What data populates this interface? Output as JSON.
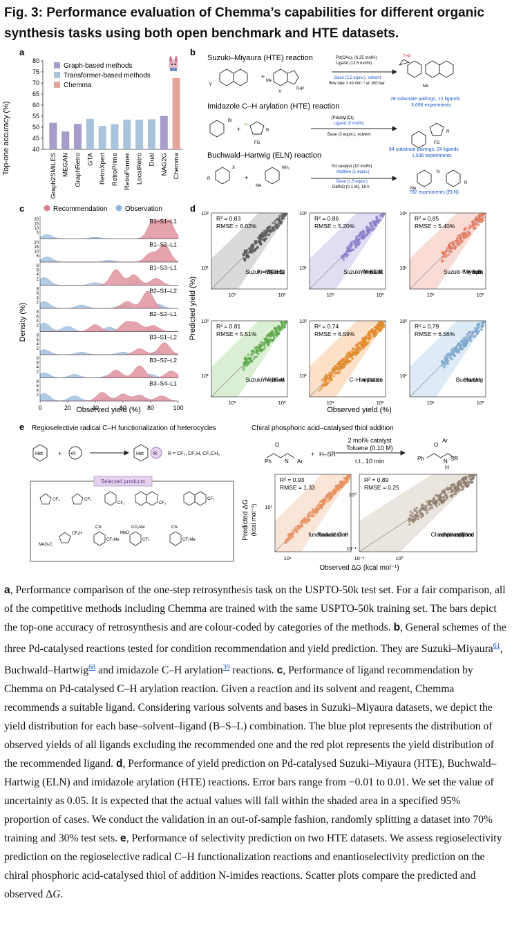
{
  "title": "Fig. 3: Performance evaluation of Chemma’s capabilities for different organic synthesis tasks using both open benchmark and HTE datasets.",
  "panels": {
    "a": "a",
    "b": "b",
    "c": "c",
    "d": "d",
    "e": "e"
  },
  "panel_a": {
    "ylabel": "Top-one accuracy (%)",
    "legend": [
      "Graph-based methods",
      "Transformer-based methods",
      "Chemma"
    ]
  },
  "panel_b": {
    "suzuki": {
      "title": "Suzuki–Miyaura (HTE) reaction",
      "cond1": "Pd(OAc)₂ (6.25 mol%)",
      "cond2": "Ligand (12.5 mol%)",
      "cond3": "Base (2.5 equiv.), solvent",
      "cond4": "flow rate 1 ml min⁻¹ at 100 bar",
      "stats1": "28 substrate pairings, 12 ligands",
      "stats2": "3,696 experiments"
    },
    "imidazole": {
      "title": "Imidazole C–H arylation (HTE) reaction",
      "cond1": "[Pd(allyl)Cl]₂",
      "cond2": "Ligand (5 mol%)",
      "cond3": "Base (3 equiv.), solvent",
      "stats1": "64 substrate pairings, 24 ligands",
      "stats2": "1,536 experiments"
    },
    "buchwald": {
      "title": "Buchwald–Hartwig (ELN) reaction",
      "cond1": "Pd catalyst (10 mol%)",
      "cond2": "Additive (1 equiv.)",
      "cond3": "Base (1.5 equiv.)",
      "cond4": "DMSO (0.1 M), 16 h",
      "stats1": "792 experiments (ELN)"
    }
  },
  "panel_c": {
    "legend": [
      "Recommendation",
      "Observation"
    ],
    "ylabel": "Density (%)",
    "xlabel": "Observed yield (%)",
    "xticks": [
      "0",
      "20",
      "40",
      "60",
      "80",
      "100"
    ],
    "rows": [
      "B1–S1–L1",
      "B1–S2–L1",
      "B1–S3–L1",
      "B2–S1–L2",
      "B2–S2–L1",
      "B3–S1–L2",
      "B3–S2–L2",
      "B3–S4–L1"
    ]
  },
  "panel_d": {
    "ylabel": "Predicted yield (%)",
    "xlabel": "Observed yield (%)",
    "plots": [
      {
        "r2": "R² = 0.83",
        "rmse": "RMSE = 6.02%",
        "l1": "Suzuki–Miyaura",
        "l2": "Y = B(OH)₂",
        "l3": "X = Cl"
      },
      {
        "r2": "R² = 0.86",
        "rmse": "RMSE = 5.20%",
        "l1": "Suzuki–Miyaura",
        "l2": "Y = BF₃K",
        "l3": "X = OTf"
      },
      {
        "r2": "R² = 0.85",
        "rmse": "RMSE = 5.40%",
        "l1": "Suzuki–Miyaura",
        "l2": "Y = Bpin",
        "l3": "X = Br"
      },
      {
        "r2": "R² = 0.81",
        "rmse": "RMSE = 5.51%",
        "l1": "Suzuki–Miyaura",
        "l2": "Y = BF₃K",
        "l3": "X = I"
      },
      {
        "r2": "R² = 0.74",
        "rmse": "RMSE = 6.59%",
        "l1": "Imidazole",
        "l2": "C–H arylation",
        "l3": ""
      },
      {
        "r2": "R² = 0.79",
        "rmse": "RMSE = 6.56%",
        "l1": "Buchwald–",
        "l2": "Hartwig",
        "l3": ""
      }
    ]
  },
  "panel_e": {
    "left_title": "Regioselectivie radical C–H functionalization of heterocycles",
    "right_title": "Chiral phosphoric acid–catalysed thiol addition",
    "r_groups": "R = CF₃, CF₂H, CF₂CH₃",
    "selected": "Selected products",
    "cat1": "2 mol% catalyst",
    "cat2": "Toluene (0.10 M)",
    "cat3": "r.t., 10 min",
    "ylabel1": "Predicted ΔG",
    "ylabel2": "(kcal mol⁻¹)",
    "xlabel": "Observed ΔG (kcal mol⁻¹)",
    "plot1": {
      "r2": "R² = 0.93",
      "rmse": "RMSE = 1.33",
      "l1": "Radical C–H",
      "l2": "functionalization"
    },
    "plot2": {
      "r2": "R² = 0.89",
      "rmse": "RMSE = 0.25",
      "l1": "Chiral phosphoric",
      "l2": "acid-catalysed",
      "l3": "thiol addition"
    }
  },
  "chart_data": [
    {
      "type": "bar",
      "title": "",
      "ylabel": "Top-one accuracy (%)",
      "ylim": [
        40,
        80
      ],
      "yticks": [
        40,
        45,
        50,
        55,
        60,
        65,
        70,
        75,
        80
      ],
      "categories": [
        "Graph2SMILES",
        "MEGAN",
        "GraphRetro",
        "GTA",
        "RetroXpert",
        "RetroPrime",
        "RetroFormer",
        "LocalRetro",
        "Dual",
        "NAG2G",
        "Chemma"
      ],
      "values": [
        52.0,
        48.1,
        51.5,
        53.8,
        50.6,
        51.4,
        53.4,
        53.4,
        53.6,
        55.1,
        72.2
      ],
      "groups": [
        "Graph-based methods",
        "Graph-based methods",
        "Graph-based methods",
        "Transformer-based methods",
        "Transformer-based methods",
        "Transformer-based methods",
        "Transformer-based methods",
        "Transformer-based methods",
        "Transformer-based methods",
        "Graph-based methods",
        "Chemma"
      ],
      "colors": {
        "Graph-based methods": "#a89ccb",
        "Transformer-based methods": "#a9c3dd",
        "Chemma": "#e3a49a"
      },
      "legend": "top-left"
    }
  ]
}
